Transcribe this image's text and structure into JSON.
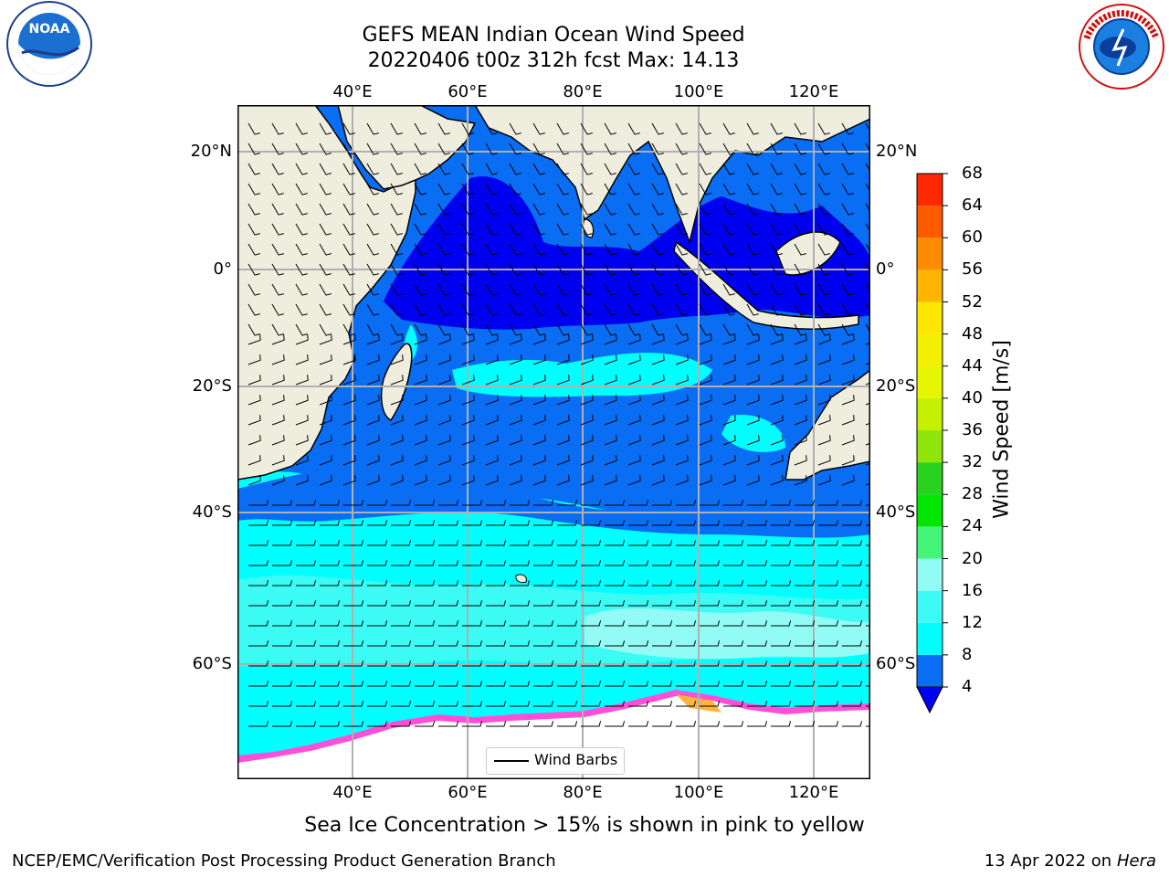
{
  "title_line1": "GEFS MEAN Indian Ocean Wind Speed",
  "title_line2": "20220406 t00z 312h fcst   Max: 14.13",
  "logos": {
    "left": "NOAA",
    "right": "NATIONAL WEATHER SERVICE"
  },
  "lon_labels": [
    "40°E",
    "60°E",
    "80°E",
    "100°E",
    "120°E"
  ],
  "lat_labels": [
    "20°N",
    "0°",
    "20°S",
    "40°S",
    "60°S"
  ],
  "colorbar": {
    "label": "Wind Speed [m/s]",
    "ticks": [
      "4",
      "8",
      "12",
      "16",
      "20",
      "24",
      "28",
      "32",
      "36",
      "40",
      "44",
      "48",
      "52",
      "56",
      "60",
      "64",
      "68"
    ],
    "colors": [
      "#0a6ef5",
      "#00ffff",
      "#3cfbf5",
      "#93fbf5",
      "#45f57a",
      "#00e600",
      "#28d21e",
      "#90e60a",
      "#c6f000",
      "#e6f500",
      "#f0f000",
      "#ffe600",
      "#ffb400",
      "#ff8c00",
      "#ff5a00",
      "#ff2800",
      "#ff0000"
    ],
    "under_color": "#0000f0"
  },
  "legend_label": "Wind Barbs",
  "footnote": "Sea Ice Concentration > 15% is shown in pink to yellow",
  "credit": "NCEP/EMC/Verification Post Processing Product Generation Branch",
  "date_text": "13 Apr 2022 on ",
  "host": "Hera"
}
